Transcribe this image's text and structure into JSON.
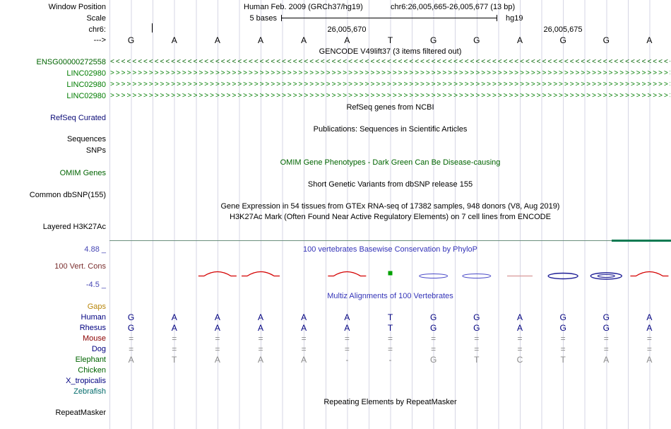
{
  "header": {
    "window_position_label": "Window Position",
    "assembly_title": "Human Feb. 2009 (GRCh37/hg19)",
    "position_title": "chr6:26,005,665-26,005,677 (13 bp)",
    "scale_label": "Scale",
    "scale_text": "5 bases",
    "scale_right_text": "hg19",
    "chrom_label": "chr6:",
    "tick_labels": [
      "26,005,670",
      "26,005,675"
    ],
    "strand_label": "--->",
    "reference_sequence": [
      "G",
      "A",
      "A",
      "A",
      "A",
      "A",
      "T",
      "G",
      "G",
      "A",
      "G",
      "G",
      "A"
    ]
  },
  "gencode": {
    "title": "GENCODE V49lift37 (3 items filtered out)",
    "items": [
      {
        "label": "ENSG00000272558",
        "glyph": "<",
        "color": "#006400"
      },
      {
        "label": "LINC02980",
        "glyph": ">",
        "color": "#007d00"
      },
      {
        "label": "LINC02980",
        "glyph": ">",
        "color": "#007d00"
      },
      {
        "label": "LINC02980",
        "glyph": ">",
        "color": "#007d00"
      }
    ]
  },
  "center_titles": {
    "refseq": "RefSeq genes from NCBI",
    "publications": "Publications: Sequences in Scientific Articles",
    "omim": "OMIM Gene Phenotypes - Dark Green Can Be Disease-causing",
    "dbsnp": "Short Genetic Variants from dbSNP release 155",
    "gtex": "Gene Expression in 54 tissues from GTEx RNA-seq of 17382 samples, 948 donors (V8, Aug 2019)",
    "h3k27ac": "H3K27Ac Mark (Often Found Near Active Regulatory Elements) on 7 cell lines from ENCODE",
    "phylop": "100 vertebrates Basewise Conservation by PhyloP",
    "multiz": "Multiz Alignments of 100 Vertebrates",
    "repeatmasker": "Repeating Elements by RepeatMasker"
  },
  "left_labels": {
    "refseq_curated": "RefSeq Curated",
    "sequences": "Sequences",
    "snps": "SNPs",
    "omim_genes": "OMIM Genes",
    "common_dbsnp": "Common dbSNP(155)",
    "layered_h3k27ac": "Layered H3K27Ac",
    "cons_max": "4.88 _",
    "vert_cons": "100 Vert. Cons",
    "cons_min": "-4.5 _",
    "gaps": "Gaps",
    "repeatmasker": "RepeatMasker"
  },
  "multiz": {
    "species": [
      {
        "name": "Human",
        "label_color": "#000080",
        "base_color": "#000080",
        "bases": [
          "G",
          "A",
          "A",
          "A",
          "A",
          "A",
          "T",
          "G",
          "G",
          "A",
          "G",
          "G",
          "A"
        ]
      },
      {
        "name": "Rhesus",
        "label_color": "#000080",
        "base_color": "#000080",
        "bases": [
          "G",
          "A",
          "A",
          "A",
          "A",
          "A",
          "T",
          "G",
          "G",
          "A",
          "G",
          "G",
          "A"
        ]
      },
      {
        "name": "Mouse",
        "label_color": "#8b0000",
        "base_color": "#8a8a8a",
        "bases": [
          "=",
          "=",
          "=",
          "=",
          "=",
          "=",
          "=",
          "=",
          "=",
          "=",
          "=",
          "=",
          "="
        ]
      },
      {
        "name": "Dog",
        "label_color": "#000080",
        "base_color": "#8a8a8a",
        "bases": [
          "=",
          "=",
          "=",
          "=",
          "=",
          "=",
          "=",
          "=",
          "=",
          "=",
          "=",
          "=",
          "="
        ]
      },
      {
        "name": "Elephant",
        "label_color": "#006400",
        "base_color": "#8a8a8a",
        "bases": [
          "A",
          "T",
          "A",
          "A",
          "A",
          "-",
          "-",
          "G",
          "T",
          "C",
          "T",
          "A",
          "A"
        ]
      },
      {
        "name": "Chicken",
        "label_color": "#006400",
        "base_color": "#8a8a8a",
        "bases": []
      },
      {
        "name": "X_tropicalis",
        "label_color": "#000080",
        "base_color": "#8a8a8a",
        "bases": []
      },
      {
        "name": "Zebrafish",
        "label_color": "#006a6a",
        "base_color": "#8a8a8a",
        "bases": []
      }
    ]
  },
  "conservation": {
    "colors": {
      "red": "#d40000",
      "blue": "#4a4ac8",
      "dark_blue": "#1e1e96",
      "green": "#00a000",
      "pale_red": "#d89898"
    },
    "glyphs": [
      {
        "base": 2,
        "type": "red-arc"
      },
      {
        "base": 3,
        "type": "red-arc"
      },
      {
        "base": 5,
        "type": "red-arc"
      },
      {
        "base": 6,
        "type": "green-dot"
      },
      {
        "base": 7,
        "type": "blue-ellipse"
      },
      {
        "base": 8,
        "type": "blue-ellipse"
      },
      {
        "base": 9,
        "type": "pale-line"
      },
      {
        "base": 10,
        "type": "dark-ellipse"
      },
      {
        "base": 11,
        "type": "swirl"
      },
      {
        "base": 12,
        "type": "red-arc"
      }
    ]
  },
  "accent_colors": {
    "title_blue": "#3434b8",
    "score_blue": "#4646b4",
    "cons_label_maroon": "#7a2e2e",
    "gaps_orange": "#b8860b",
    "omim_green": "#006400",
    "refseq_blue": "#0c0c78"
  }
}
